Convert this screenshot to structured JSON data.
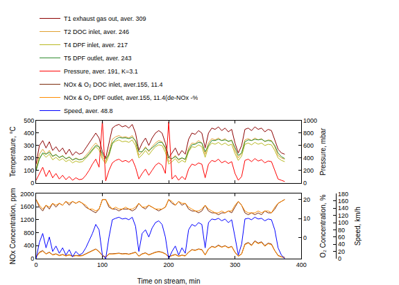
{
  "chart_data": [
    {
      "type": "line",
      "x": [
        0,
        5,
        10,
        15,
        20,
        25,
        30,
        35,
        40,
        45,
        50,
        55,
        60,
        65,
        70,
        75,
        80,
        85,
        90,
        95,
        100,
        105,
        110,
        115,
        120,
        125,
        130,
        135,
        140,
        145,
        150,
        155,
        160,
        165,
        170,
        175,
        180,
        185,
        190,
        195,
        200,
        205,
        210,
        215,
        220,
        225,
        230,
        235,
        240,
        245,
        250,
        255,
        260,
        265,
        270,
        275,
        280,
        285,
        290,
        295,
        300,
        305,
        310,
        315,
        320,
        325,
        330,
        335,
        340,
        345,
        350,
        355,
        360,
        365,
        370,
        375
      ],
      "xlim": [
        0,
        400
      ],
      "xticks": [
        0,
        100,
        200,
        300,
        400
      ],
      "tick_labels": "y",
      "grid": false,
      "ylabel": "Temperature, °C",
      "ylim": [
        0,
        500
      ],
      "yticks": [
        0,
        100,
        200,
        300,
        400,
        500
      ],
      "y2label": "Pressure, mbar",
      "y2lim": [
        0,
        1000
      ],
      "y2ticks": [
        0,
        200,
        400,
        600,
        800,
        1000
      ],
      "series": [
        {
          "name": "T1 exhaust gas out, aver. 309",
          "color": "#8b0000",
          "values": [
            150,
            300,
            340,
            280,
            330,
            260,
            290,
            250,
            280,
            230,
            270,
            220,
            250,
            230,
            240,
            280,
            320,
            360,
            400,
            360,
            250,
            200,
            330,
            440,
            460,
            470,
            450,
            460,
            440,
            470,
            400,
            260,
            320,
            360,
            300,
            360,
            400,
            420,
            400,
            320,
            200,
            240,
            280,
            220,
            260,
            230,
            350,
            400,
            390,
            420,
            400,
            280,
            400,
            440,
            430,
            450,
            420,
            440,
            410,
            430,
            320,
            240,
            300,
            430,
            440,
            420,
            450,
            430,
            440,
            410,
            430,
            420,
            350,
            270,
            240,
            230
          ]
        },
        {
          "name": "T2 DOC inlet, aver. 246",
          "color": "#e0a030",
          "values": [
            110,
            230,
            270,
            230,
            260,
            210,
            230,
            200,
            220,
            190,
            210,
            180,
            200,
            185,
            190,
            220,
            250,
            290,
            320,
            290,
            210,
            170,
            250,
            350,
            370,
            380,
            365,
            370,
            360,
            380,
            330,
            220,
            250,
            290,
            250,
            290,
            320,
            340,
            330,
            270,
            170,
            190,
            220,
            180,
            200,
            185,
            280,
            320,
            315,
            340,
            320,
            230,
            320,
            355,
            345,
            360,
            340,
            355,
            330,
            345,
            260,
            200,
            240,
            345,
            355,
            340,
            360,
            345,
            355,
            330,
            345,
            340,
            290,
            220,
            200,
            190
          ]
        },
        {
          "name": "T4 DPF inlet, aver. 217",
          "color": "#b8b820",
          "values": [
            100,
            200,
            235,
            205,
            230,
            185,
            205,
            180,
            195,
            170,
            185,
            160,
            175,
            165,
            170,
            195,
            225,
            260,
            290,
            265,
            190,
            155,
            220,
            315,
            335,
            345,
            330,
            335,
            325,
            345,
            300,
            200,
            225,
            260,
            225,
            260,
            290,
            305,
            300,
            245,
            150,
            170,
            195,
            160,
            180,
            165,
            250,
            290,
            285,
            305,
            290,
            205,
            290,
            320,
            310,
            325,
            305,
            320,
            300,
            310,
            235,
            180,
            215,
            310,
            320,
            305,
            325,
            310,
            320,
            300,
            310,
            305,
            260,
            200,
            180,
            170
          ]
        },
        {
          "name": "T5 DPF outlet, aver. 243",
          "color": "#2e8b2e",
          "values": [
            100,
            190,
            240,
            230,
            245,
            215,
            225,
            205,
            215,
            195,
            205,
            185,
            195,
            185,
            190,
            205,
            235,
            270,
            300,
            290,
            230,
            190,
            230,
            320,
            350,
            365,
            360,
            362,
            355,
            365,
            340,
            250,
            250,
            280,
            260,
            280,
            305,
            325,
            325,
            285,
            200,
            195,
            210,
            190,
            200,
            190,
            260,
            305,
            310,
            325,
            320,
            250,
            300,
            340,
            340,
            350,
            340,
            345,
            335,
            340,
            285,
            220,
            240,
            330,
            345,
            340,
            350,
            345,
            350,
            335,
            340,
            335,
            300,
            240,
            210,
            195
          ]
        },
        {
          "name": "Pressure, aver. 191, K=3.1",
          "color": "#ff0000",
          "axis": "y2",
          "values": [
            40,
            150,
            250,
            100,
            200,
            80,
            150,
            60,
            120,
            50,
            100,
            40,
            80,
            50,
            60,
            120,
            200,
            300,
            380,
            250,
            1000,
            30,
            200,
            320,
            360,
            380,
            340,
            360,
            330,
            380,
            250,
            60,
            150,
            220,
            120,
            200,
            280,
            320,
            280,
            150,
            980,
            60,
            120,
            40,
            100,
            50,
            220,
            300,
            280,
            320,
            300,
            80,
            300,
            360,
            340,
            380,
            320,
            350,
            310,
            340,
            150,
            40,
            100,
            360,
            380,
            340,
            390,
            350,
            370,
            320,
            350,
            340,
            200,
            60,
            40,
            20
          ]
        }
      ]
    },
    {
      "type": "line",
      "x": [
        0,
        5,
        10,
        15,
        20,
        25,
        30,
        35,
        40,
        45,
        50,
        55,
        60,
        65,
        70,
        75,
        80,
        85,
        90,
        95,
        100,
        105,
        110,
        115,
        120,
        125,
        130,
        135,
        140,
        145,
        150,
        155,
        160,
        165,
        170,
        175,
        180,
        185,
        190,
        195,
        200,
        205,
        210,
        215,
        220,
        225,
        230,
        235,
        240,
        245,
        250,
        255,
        260,
        265,
        270,
        275,
        280,
        285,
        290,
        295,
        300,
        305,
        310,
        315,
        320,
        325,
        330,
        335,
        340,
        345,
        350,
        355,
        360,
        365,
        370,
        375
      ],
      "xlabel": "Time on stream, min",
      "xlim": [
        0,
        400
      ],
      "xticks": [
        0,
        100,
        200,
        300,
        400
      ],
      "grid": false,
      "ylabel": "NOx Concentration, ppm",
      "ylim": [
        0,
        2000
      ],
      "yticks": [
        0,
        400,
        800,
        1200,
        1600,
        2000
      ],
      "y2label": "O₂ Concentration, %",
      "y2lim": [
        -11,
        23
      ],
      "y2ticks": [
        0,
        10,
        20
      ],
      "y3label": "Speed, km/h",
      "y3lim": [
        0,
        180
      ],
      "y3ticks": [
        0,
        20,
        40,
        60,
        80,
        100,
        120,
        140,
        160,
        180
      ],
      "series": [
        {
          "name": "NOx & O₂ DOC inlet, aver.155, 11.4",
          "color": "#7b2a0a",
          "values": [
            50,
            200,
            250,
            150,
            200,
            120,
            150,
            100,
            130,
            90,
            120,
            80,
            100,
            90,
            100,
            150,
            200,
            250,
            300,
            220,
            100,
            50,
            150,
            150,
            160,
            170,
            150,
            160,
            140,
            170,
            200,
            80,
            150,
            180,
            120,
            160,
            200,
            220,
            200,
            150,
            60,
            100,
            130,
            80,
            110,
            90,
            200,
            280,
            260,
            300,
            280,
            120,
            300,
            380,
            350,
            420,
            360,
            400,
            340,
            380,
            200,
            80,
            150,
            450,
            500,
            420,
            550,
            480,
            520,
            400,
            480,
            450,
            250,
            100,
            60,
            40
          ],
          "o2_values": [
            20,
            16,
            14,
            17,
            15,
            18,
            16,
            18,
            17,
            19,
            17,
            19,
            18,
            19,
            18,
            16,
            15,
            14,
            13,
            15,
            20,
            20,
            16,
            15,
            15,
            14,
            15,
            15,
            15,
            14,
            15,
            18,
            16,
            15,
            17,
            16,
            15,
            14,
            15,
            16,
            20,
            18,
            17,
            19,
            17,
            18,
            15,
            14,
            14,
            13,
            14,
            17,
            14,
            13,
            13,
            12,
            13,
            13,
            14,
            13,
            16,
            19,
            17,
            13,
            12,
            13,
            12,
            13,
            12,
            14,
            13,
            13,
            15,
            18,
            19,
            20
          ]
        },
        {
          "name": "NOx & O₂ DPF outlet, aver.155, 11.4(de-NOx -%)",
          "color": "#ff8c00",
          "values": [
            40,
            180,
            230,
            140,
            190,
            110,
            140,
            90,
            120,
            80,
            110,
            70,
            90,
            80,
            90,
            140,
            190,
            240,
            290,
            210,
            90,
            40,
            140,
            140,
            150,
            160,
            140,
            150,
            130,
            160,
            190,
            70,
            140,
            170,
            110,
            150,
            190,
            210,
            190,
            140,
            50,
            90,
            120,
            70,
            100,
            80,
            190,
            270,
            250,
            290,
            270,
            110,
            290,
            370,
            340,
            400,
            350,
            390,
            330,
            370,
            190,
            70,
            140,
            430,
            480,
            400,
            530,
            460,
            500,
            380,
            460,
            430,
            240,
            90,
            50,
            30
          ],
          "o2_values": [
            20,
            17,
            15,
            17,
            16,
            18,
            17,
            18,
            17,
            19,
            18,
            19,
            18,
            19,
            18,
            17,
            15,
            15,
            14,
            15,
            20,
            20,
            17,
            15,
            16,
            15,
            15,
            16,
            15,
            15,
            16,
            18,
            16,
            16,
            17,
            16,
            15,
            15,
            15,
            16,
            20,
            19,
            17,
            19,
            18,
            18,
            16,
            15,
            14,
            14,
            15,
            17,
            15,
            14,
            13,
            13,
            14,
            13,
            14,
            14,
            17,
            19,
            17,
            14,
            13,
            13,
            13,
            14,
            13,
            14,
            14,
            13,
            16,
            18,
            19,
            20
          ]
        },
        {
          "name": "Speed, aver. 48.8",
          "color": "#0000ff",
          "axis": "y3",
          "values": [
            0,
            45,
            70,
            30,
            60,
            20,
            35,
            15,
            30,
            10,
            25,
            5,
            20,
            10,
            15,
            30,
            50,
            70,
            95,
            80,
            10,
            0,
            60,
            108,
            112,
            115,
            110,
            112,
            108,
            115,
            90,
            20,
            70,
            80,
            60,
            85,
            100,
            105,
            95,
            60,
            0,
            20,
            35,
            10,
            30,
            15,
            80,
            95,
            90,
            100,
            95,
            30,
            100,
            110,
            108,
            112,
            105,
            110,
            100,
            108,
            60,
            10,
            40,
            110,
            112,
            108,
            115,
            110,
            112,
            105,
            110,
            108,
            80,
            30,
            10,
            0
          ]
        }
      ]
    }
  ]
}
